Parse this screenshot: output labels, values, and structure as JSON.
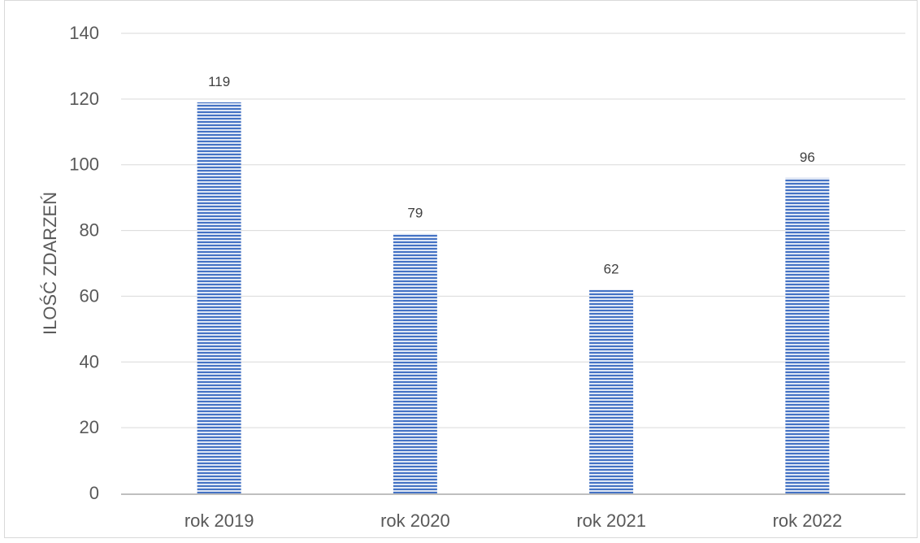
{
  "chart_data": {
    "type": "bar",
    "title": "",
    "categories": [
      "rok 2019",
      "rok 2020",
      "rok 2021",
      "rok 2022"
    ],
    "values": [
      119,
      79,
      62,
      96
    ],
    "xlabel": "",
    "ylabel": "ILOŚĆ ZDARZEŃ",
    "ylim": [
      0,
      140
    ],
    "yticks": [
      0,
      20,
      40,
      60,
      80,
      100,
      120,
      140
    ],
    "grid": true,
    "legend": "none",
    "data_labels": true,
    "colors": {
      "bar_fill": "#4472c4",
      "bar_stripe": "#dfe7f5",
      "grid": "#d9d9d9",
      "axis": "#bfbfbf",
      "tick_text": "#595959",
      "label_text": "#404040"
    }
  }
}
